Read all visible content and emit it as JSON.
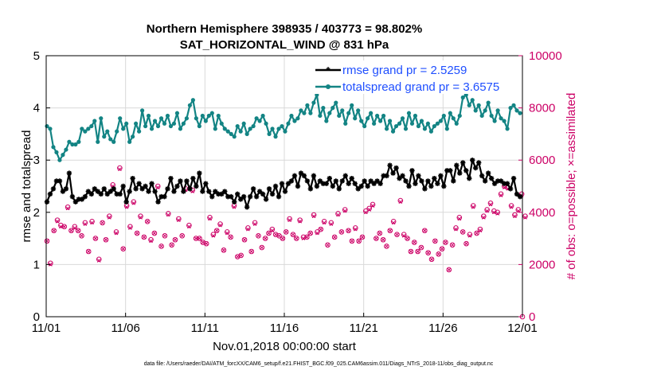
{
  "chart_data": {
    "type": "line",
    "title": "Northern Hemisphere 398935 / 403773 = 98.802%",
    "subtitle": "SAT_HORIZONTAL_WIND @ 831 hPa",
    "xlabel": "Nov.01,2018 00:00:00 start",
    "ylabel": "rmse and totalspread",
    "ylabel_right": "# of obs: o=possible; ×=assimilated",
    "footnote": "data file: /Users/raeder/DAI/ATM_forcXX/CAM6_setup/f.e21.FHIST_BGC.f09_025.CAM6assim.011/Diags_NTrS_2018-11/obs_diag_output.nc",
    "x_tick_labels": [
      "11/01",
      "11/06",
      "11/11",
      "11/16",
      "11/21",
      "11/26",
      "12/01"
    ],
    "x_tick_days": [
      0,
      5,
      10,
      15,
      20,
      25,
      30
    ],
    "xlim": [
      0,
      30
    ],
    "ylim": [
      0,
      5
    ],
    "yticks": [
      "0",
      "1",
      "2",
      "3",
      "4",
      "5"
    ],
    "ylim_right": [
      0,
      10000
    ],
    "yticks_right": [
      "0",
      "2000",
      "4000",
      "6000",
      "8000",
      "10000"
    ],
    "grid": true,
    "legend_position": "top-right",
    "colors": {
      "rmse": "#000000",
      "spread": "#138484",
      "obs": "#cc0066"
    },
    "series": [
      {
        "name": "rmse grand pr = 2.5259",
        "axis": "left",
        "marker": "asterisk",
        "values": [
          2.2,
          2.35,
          2.45,
          2.6,
          2.6,
          2.4,
          2.45,
          2.75,
          2.3,
          2.2,
          2.25,
          2.25,
          2.3,
          2.4,
          2.35,
          2.45,
          2.4,
          2.35,
          2.45,
          2.35,
          2.4,
          2.45,
          2.35,
          2.35,
          2.5,
          2.2,
          2.4,
          2.65,
          2.45,
          2.55,
          2.45,
          2.5,
          2.4,
          2.55,
          2.4,
          2.2,
          2.3,
          2.3,
          2.45,
          2.65,
          2.4,
          2.5,
          2.6,
          2.4,
          2.6,
          2.45,
          2.65,
          2.5,
          2.75,
          2.4,
          2.55,
          2.4,
          2.3,
          2.4,
          2.35,
          2.35,
          2.4,
          2.3,
          2.3,
          2.2,
          2.35,
          2.25,
          2.3,
          2.1,
          2.3,
          2.45,
          2.3,
          2.4,
          2.35,
          2.25,
          2.45,
          2.35,
          2.5,
          2.3,
          2.55,
          2.4,
          2.55,
          2.6,
          2.7,
          2.5,
          2.75,
          2.7,
          2.6,
          2.45,
          2.7,
          2.5,
          2.6,
          2.55,
          2.55,
          2.65,
          2.5,
          2.6,
          2.45,
          2.6,
          2.7,
          2.55,
          2.65,
          2.55,
          2.45,
          2.5,
          2.6,
          2.5,
          2.6,
          2.55,
          2.6,
          2.55,
          2.7,
          2.7,
          2.9,
          2.75,
          2.85,
          2.65,
          2.7,
          2.6,
          2.5,
          2.8,
          2.55,
          2.7,
          2.6,
          2.45,
          2.6,
          2.5,
          2.65,
          2.55,
          2.7,
          2.5,
          2.8,
          2.8,
          2.6,
          2.9,
          2.75,
          2.95,
          2.8,
          2.65,
          3.0,
          2.85,
          2.95,
          2.7,
          2.6,
          2.75,
          2.65,
          2.55,
          2.6,
          2.6,
          2.55,
          2.55,
          2.45,
          2.65,
          2.35,
          2.3
        ]
      },
      {
        "name": "totalspread grand pr = 3.6575",
        "axis": "left",
        "marker": "circle",
        "values": [
          3.65,
          3.6,
          3.25,
          3.15,
          3.0,
          3.1,
          3.2,
          3.35,
          3.3,
          3.3,
          3.35,
          3.6,
          3.55,
          3.6,
          3.65,
          3.75,
          3.35,
          3.8,
          3.45,
          3.55,
          3.4,
          3.35,
          3.55,
          3.8,
          3.6,
          3.7,
          3.35,
          3.45,
          3.7,
          3.55,
          3.95,
          3.65,
          3.85,
          3.6,
          3.75,
          3.65,
          3.8,
          3.7,
          3.85,
          3.65,
          3.7,
          3.9,
          3.6,
          3.7,
          3.8,
          4.05,
          4.15,
          3.8,
          3.65,
          3.85,
          3.75,
          3.85,
          3.9,
          3.6,
          3.85,
          3.7,
          3.6,
          3.55,
          3.5,
          3.45,
          3.65,
          3.55,
          3.7,
          3.5,
          3.6,
          3.65,
          3.8,
          3.75,
          3.85,
          3.7,
          3.5,
          3.6,
          3.45,
          3.6,
          3.65,
          3.55,
          3.7,
          3.85,
          3.75,
          3.8,
          3.95,
          3.9,
          4.05,
          3.9,
          4.1,
          4.25,
          3.85,
          4.0,
          3.75,
          3.9,
          4.0,
          4.1,
          3.85,
          3.95,
          3.7,
          3.9,
          4.05,
          3.8,
          3.95,
          3.75,
          3.65,
          3.8,
          3.9,
          3.7,
          3.85,
          3.75,
          3.85,
          3.6,
          3.75,
          3.55,
          3.65,
          3.7,
          3.8,
          3.6,
          3.9,
          3.7,
          3.85,
          3.65,
          3.75,
          3.6,
          3.7,
          3.55,
          3.65,
          3.7,
          3.75,
          3.85,
          3.6,
          3.9,
          3.8,
          3.7,
          3.85,
          4.2,
          4.25,
          4.05,
          4.15,
          3.95,
          4.05,
          3.85,
          3.95,
          4.1,
          3.85,
          3.75,
          3.95,
          3.8,
          3.75,
          3.6,
          4.0,
          4.05,
          3.95,
          3.9
        ]
      },
      {
        "name": "obs possible",
        "axis": "right",
        "marker": "o",
        "values": [
          2900,
          2050,
          3300,
          3700,
          3500,
          3450,
          4200,
          3300,
          3450,
          3300,
          3100,
          3600,
          2500,
          3650,
          3000,
          2200,
          3600,
          2950,
          3850,
          5050,
          3250,
          5700,
          2600,
          4250,
          3450,
          4400,
          3200,
          3850,
          3050,
          3650,
          2950,
          3200,
          5000,
          2700,
          3100,
          3950,
          2750,
          2950,
          3750,
          3100,
          4900,
          3500,
          4850,
          3000,
          3000,
          2850,
          2800,
          3800,
          3150,
          3300,
          3550,
          2550,
          3250,
          3050,
          4250,
          2300,
          2350,
          2950,
          3400,
          2500,
          3600,
          3100,
          2650,
          3000,
          3200,
          3350,
          3150,
          3100,
          3000,
          3250,
          3750,
          3150,
          3000,
          3700,
          3050,
          3050,
          3200,
          3900,
          3250,
          3350,
          3650,
          2750,
          3600,
          3050,
          3950,
          3250,
          4100,
          3300,
          2900,
          3400,
          2900,
          3050,
          4050,
          4150,
          4300,
          3000,
          3200,
          2950,
          2700,
          3300,
          3650,
          3150,
          4450,
          3150,
          3000,
          2500,
          2850,
          2500,
          2650,
          3300,
          2450,
          2200,
          2900,
          2400,
          2600,
          2850,
          1800,
          2750,
          3400,
          3800,
          3250,
          2800,
          3150,
          4250,
          3200,
          3350,
          3850,
          4100,
          4350,
          4050,
          4000,
          4700,
          5000,
          4950,
          4250,
          3900,
          4100,
          4700,
          3850
        ]
      },
      {
        "name": "obs assimilated",
        "axis": "right",
        "marker": "x",
        "values": [
          2900,
          2000,
          3300,
          3650,
          3450,
          3450,
          4150,
          3300,
          3400,
          3300,
          3100,
          3550,
          2500,
          3600,
          3000,
          2150,
          3600,
          2950,
          3800,
          5000,
          3200,
          5650,
          2600,
          4200,
          3400,
          4350,
          3200,
          3800,
          3050,
          3650,
          2900,
          3200,
          4950,
          2700,
          3100,
          3900,
          2750,
          2950,
          3700,
          3100,
          4850,
          3450,
          4800,
          3000,
          3000,
          2850,
          2800,
          3750,
          3100,
          3300,
          3500,
          2550,
          3200,
          3050,
          4200,
          2300,
          2350,
          2950,
          3350,
          2500,
          3550,
          3100,
          2650,
          3000,
          3200,
          3300,
          3150,
          3100,
          3000,
          3250,
          3700,
          3150,
          3000,
          3650,
          3000,
          3050,
          3200,
          3850,
          3200,
          3350,
          3600,
          2750,
          3550,
          3050,
          3900,
          3250,
          4050,
          3300,
          2900,
          3350,
          2900,
          3050,
          4000,
          4100,
          4250,
          3000,
          3200,
          2950,
          2700,
          3300,
          3600,
          3150,
          4400,
          3100,
          3000,
          2500,
          2850,
          2500,
          2650,
          3300,
          2450,
          2200,
          2900,
          2400,
          2600,
          2850,
          1800,
          2750,
          3350,
          3750,
          3250,
          2800,
          3100,
          4200,
          3200,
          3300,
          3800,
          4050,
          4300,
          4000,
          3950,
          4650,
          4950,
          4900,
          4200,
          3850,
          4050,
          4650,
          3800
        ]
      }
    ],
    "obs_day_offset": 0.05,
    "obs_day_step": 0.2183
  }
}
